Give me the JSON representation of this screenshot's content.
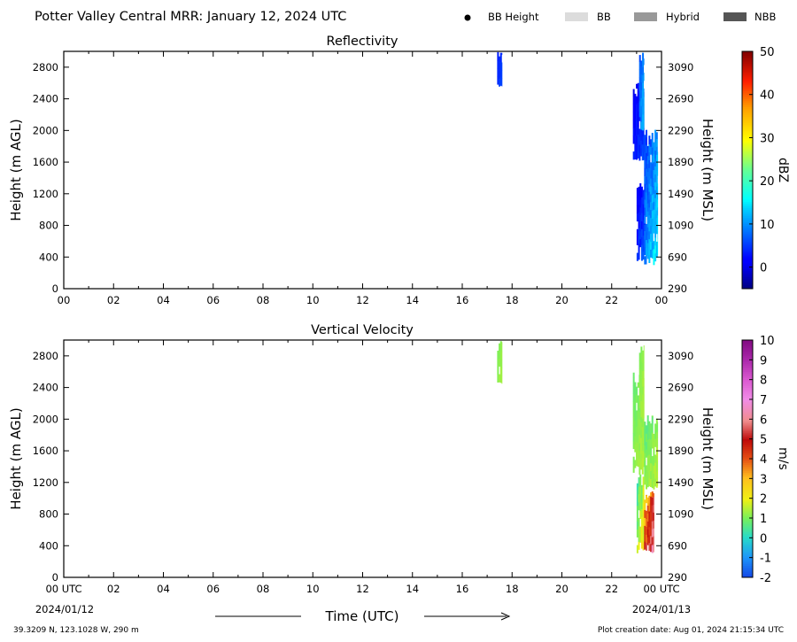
{
  "header": {
    "title": "Potter Valley Central MRR:  January 12, 2024 UTC",
    "legend": [
      {
        "label": "BB Height",
        "kind": "dot",
        "color": "#000000"
      },
      {
        "label": "BB",
        "kind": "box",
        "color": "#dcdcdc"
      },
      {
        "label": "Hybrid",
        "kind": "box",
        "color": "#999999"
      },
      {
        "label": "NBB",
        "kind": "box",
        "color": "#555555"
      }
    ]
  },
  "footer": {
    "location": "39.3209 N, 123.1028 W, 290 m",
    "created": "Plot creation date: Aug 01, 2024 21:15:34 UTC",
    "xlabel": "Time (UTC)",
    "start_date": "2024/01/12",
    "end_date": "2024/01/13"
  },
  "chart_data": [
    {
      "type": "heatmap",
      "title": "Reflectivity",
      "ylabel": "Height (m AGL)",
      "y2label": "Height (m MSL)",
      "ylim": [
        0,
        3000
      ],
      "yticks": [
        "0",
        "400",
        "800",
        "1200",
        "1600",
        "2000",
        "2400",
        "2800"
      ],
      "y2ticks": [
        "290",
        "690",
        "1090",
        "1490",
        "1890",
        "2290",
        "2690",
        "3090"
      ],
      "xlim": [
        0,
        24
      ],
      "xticks": [
        "00",
        "02",
        "04",
        "06",
        "08",
        "10",
        "12",
        "14",
        "16",
        "18",
        "20",
        "22",
        "00"
      ],
      "colorbar": {
        "label": "dBZ",
        "min": -5,
        "max": 50,
        "ticks": [
          "0",
          "10",
          "20",
          "30",
          "40",
          "50"
        ],
        "colormap": "jet"
      },
      "echoes": [
        {
          "t0": 17.4,
          "t1": 17.6,
          "h0": 2550,
          "h1": 2990,
          "v0": 3,
          "v1": 6
        },
        {
          "t0": 22.85,
          "t1": 23.3,
          "h0": 1600,
          "h1": 2600,
          "v0": 0,
          "v1": 6
        },
        {
          "t0": 23.0,
          "t1": 23.4,
          "h0": 300,
          "h1": 1400,
          "v0": 0,
          "v1": 8
        },
        {
          "t0": 23.1,
          "t1": 23.3,
          "h0": 2000,
          "h1": 2990,
          "v0": 6,
          "v1": 13
        },
        {
          "t0": 23.3,
          "t1": 23.85,
          "h0": 300,
          "h1": 2050,
          "v0": 4,
          "v1": 16
        }
      ]
    },
    {
      "type": "heatmap",
      "title": "Vertical Velocity",
      "ylabel": "Height (m AGL)",
      "y2label": "Height (m MSL)",
      "ylim": [
        0,
        3000
      ],
      "yticks": [
        "0",
        "400",
        "800",
        "1200",
        "1600",
        "2000",
        "2400",
        "2800"
      ],
      "y2ticks": [
        "290",
        "690",
        "1090",
        "1490",
        "1890",
        "2290",
        "2690",
        "3090"
      ],
      "xlim": [
        0,
        24
      ],
      "xticks": [
        "00 UTC",
        "02",
        "04",
        "06",
        "08",
        "10",
        "12",
        "14",
        "16",
        "18",
        "20",
        "22",
        "00 UTC"
      ],
      "colorbar": {
        "label": "m/s",
        "min": -2,
        "max": 10,
        "ticks": [
          "-2",
          "-1",
          "0",
          "1",
          "2",
          "3",
          "4",
          "5",
          "6",
          "7",
          "8",
          "9",
          "10"
        ],
        "colormap": "velocity"
      },
      "echoes": [
        {
          "t0": 17.4,
          "t1": 17.6,
          "h0": 2450,
          "h1": 2990,
          "v0": 1.0,
          "v1": 1.4
        },
        {
          "t0": 22.85,
          "t1": 23.3,
          "h0": 1300,
          "h1": 2600,
          "v0": 0.8,
          "v1": 1.5
        },
        {
          "t0": 23.0,
          "t1": 23.3,
          "h0": 300,
          "h1": 1300,
          "v0": 0.3,
          "v1": 2.5
        },
        {
          "t0": 23.1,
          "t1": 23.3,
          "h0": 2000,
          "h1": 2990,
          "v0": 1.0,
          "v1": 1.5
        },
        {
          "t0": 23.3,
          "t1": 23.85,
          "h0": 1100,
          "h1": 2050,
          "v0": 0.6,
          "v1": 1.6
        },
        {
          "t0": 23.3,
          "t1": 23.7,
          "h0": 300,
          "h1": 1100,
          "v0": 2.5,
          "v1": 6.5
        }
      ]
    }
  ]
}
